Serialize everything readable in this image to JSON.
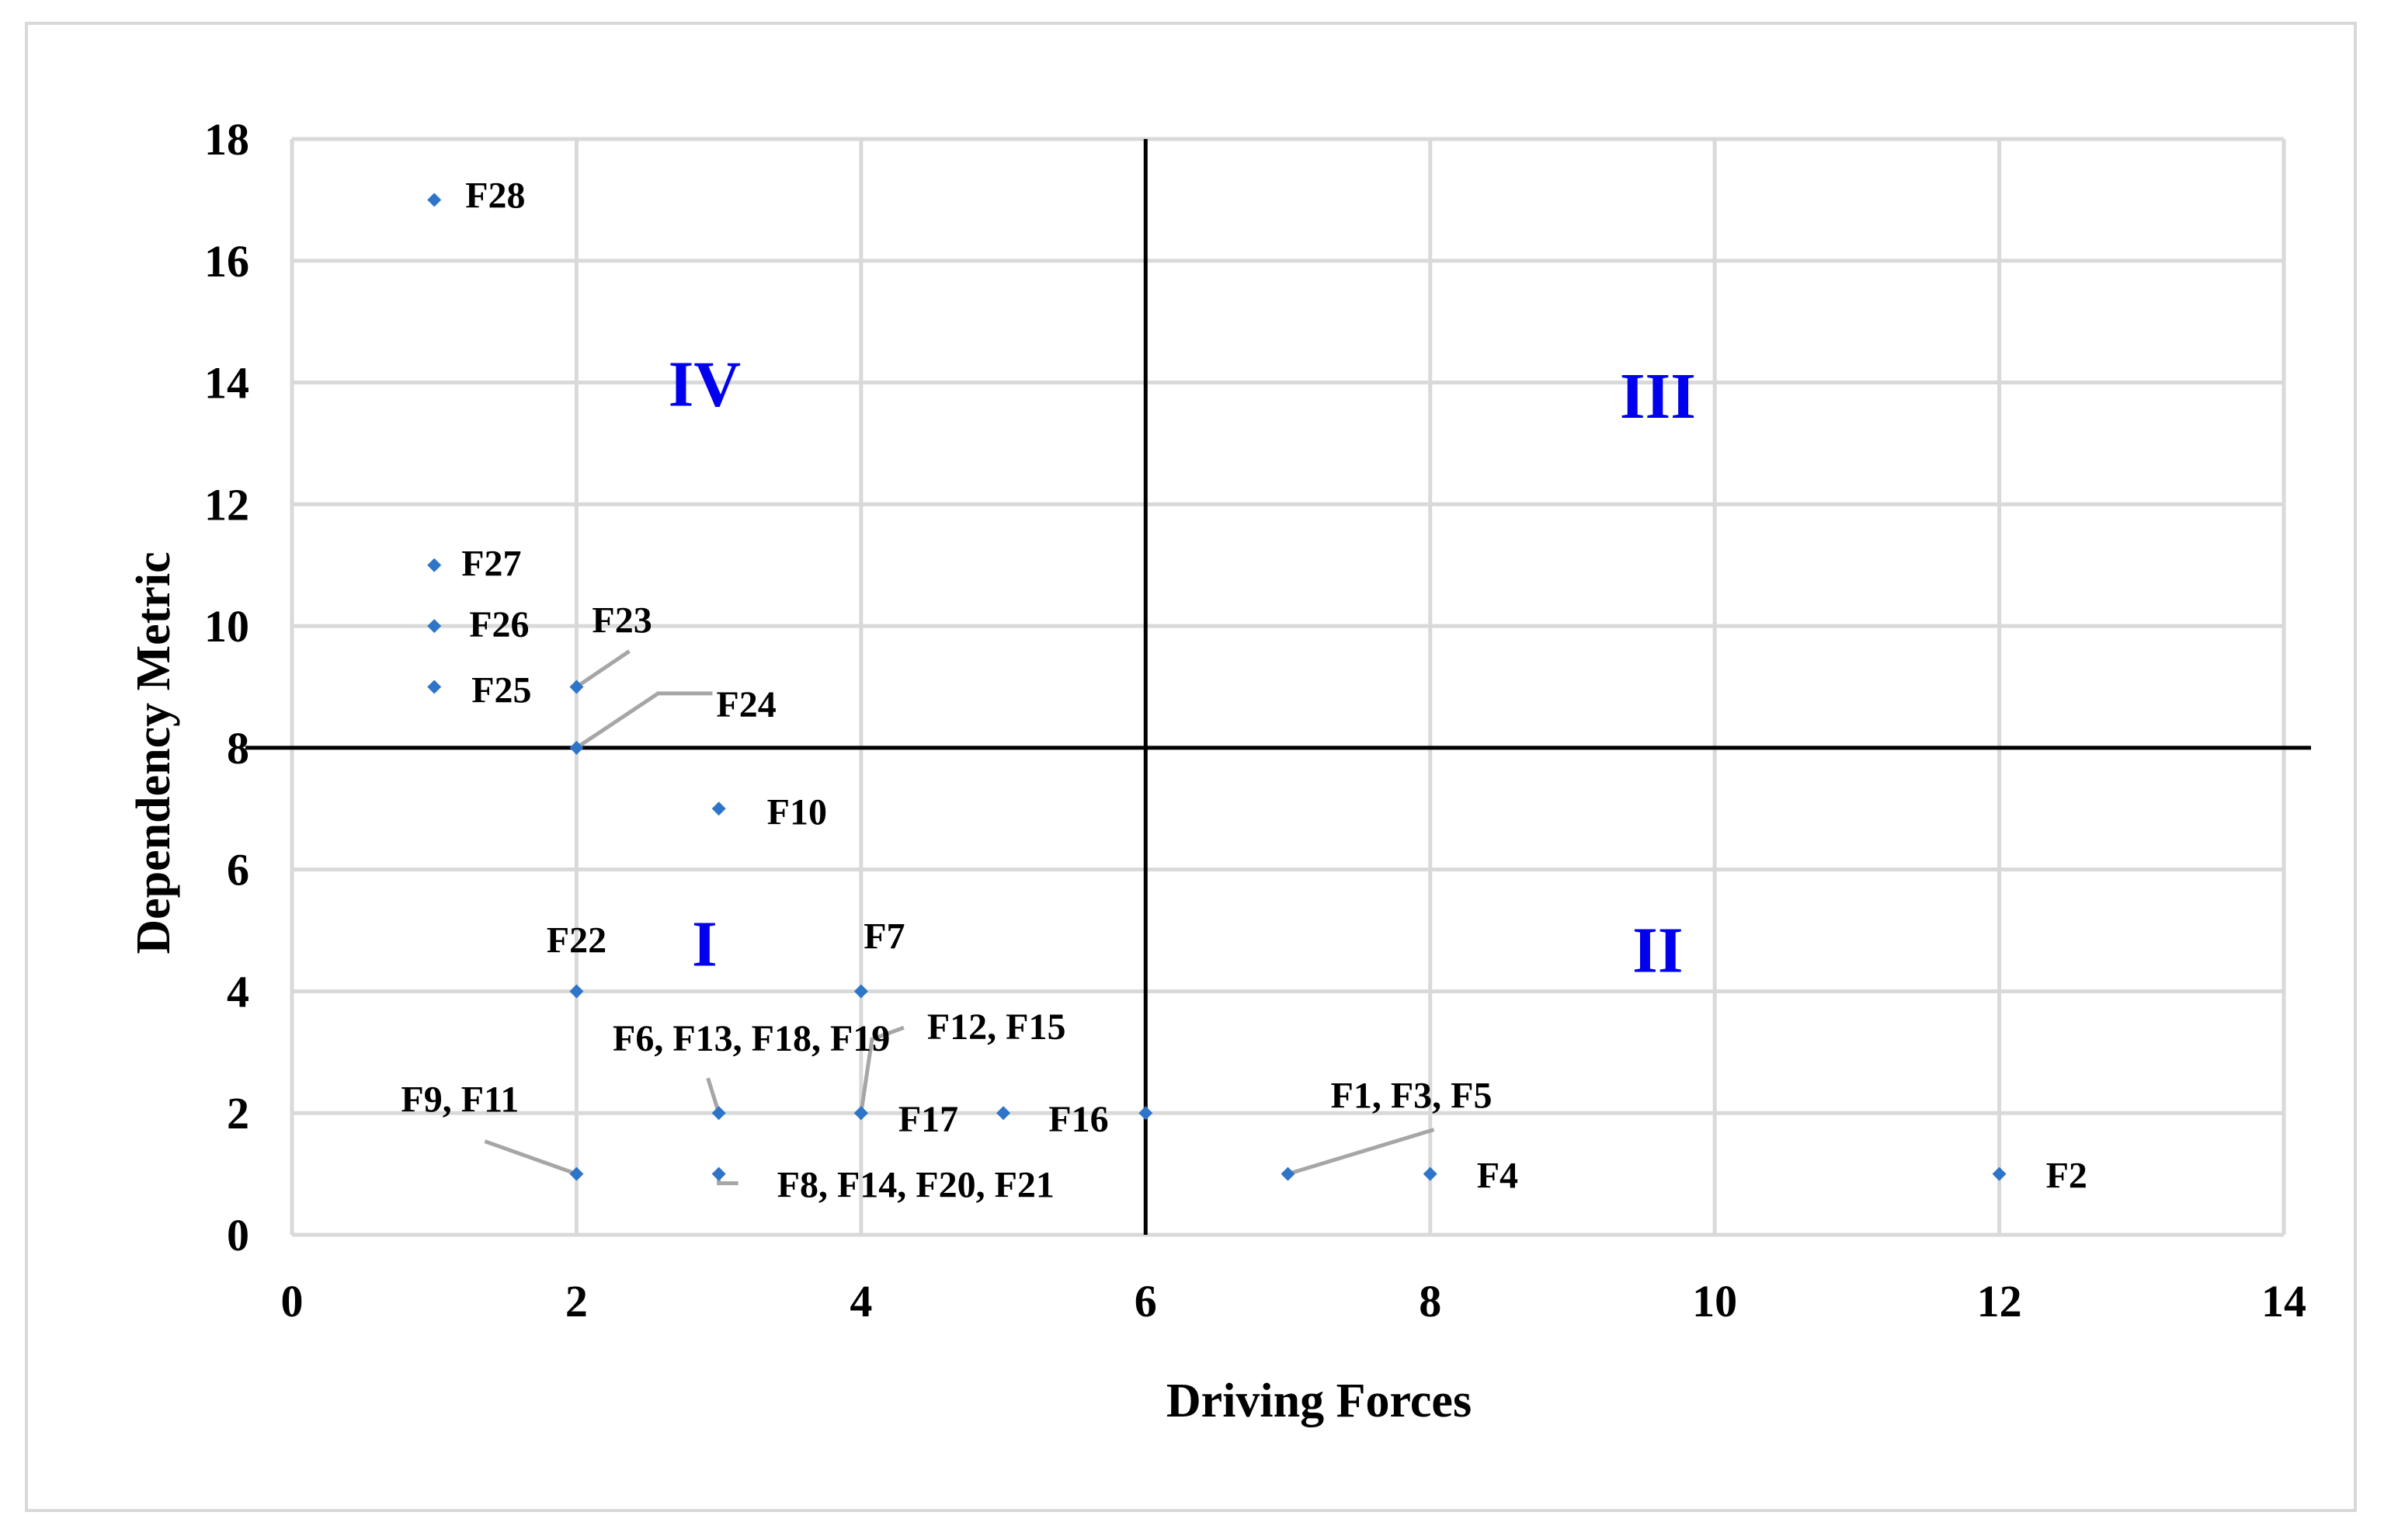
{
  "chart_data": {
    "type": "scatter",
    "title": "",
    "xlabel": "Driving Forces",
    "ylabel": "Dependency Metric",
    "xlim": [
      0,
      14
    ],
    "ylim": [
      0,
      18
    ],
    "x_ticks": [
      "0",
      "2",
      "4",
      "6",
      "8",
      "10",
      "12",
      "14"
    ],
    "y_ticks": [
      "0",
      "2",
      "4",
      "6",
      "8",
      "10",
      "12",
      "14",
      "16",
      "18"
    ],
    "grid": true,
    "legend": "none",
    "marker_color": "#2e75c9",
    "dividers": {
      "x": 6,
      "y": 8
    },
    "quadrants": [
      {
        "label": "IV",
        "x": 2.9,
        "y": 14
      },
      {
        "label": "III",
        "x": 9.6,
        "y": 13.8
      },
      {
        "label": "I",
        "x": 2.9,
        "y": 4.8
      },
      {
        "label": "II",
        "x": 9.6,
        "y": 4.7
      }
    ],
    "points": [
      {
        "label": "F28",
        "x": 1,
        "y": 17
      },
      {
        "label": "F27",
        "x": 1,
        "y": 11
      },
      {
        "label": "F26",
        "x": 1,
        "y": 10
      },
      {
        "label": "F25",
        "x": 1,
        "y": 9
      },
      {
        "label": "F23",
        "x": 2,
        "y": 9
      },
      {
        "label": "F24",
        "x": 2,
        "y": 8
      },
      {
        "label": "F10",
        "x": 3,
        "y": 7
      },
      {
        "label": "F22",
        "x": 2,
        "y": 4
      },
      {
        "label": "F7",
        "x": 4,
        "y": 4
      },
      {
        "label": "F12, F15",
        "x": 4,
        "y": 2
      },
      {
        "label": "F6, F13, F18, F19",
        "x": 3,
        "y": 2
      },
      {
        "label": "F9, F11",
        "x": 2,
        "y": 1
      },
      {
        "label": "F17",
        "x": 4,
        "y": 2
      },
      {
        "label": "F16",
        "x": 6,
        "y": 2
      },
      {
        "label": "F8, F14, F20, F21",
        "x": 3,
        "y": 1
      },
      {
        "label": "F1, F3, F5",
        "x": 7,
        "y": 1
      },
      {
        "label": "F4",
        "x": 8,
        "y": 1
      },
      {
        "label": "F2",
        "x": 12,
        "y": 1
      },
      {
        "label": "",
        "x": 5,
        "y": 2
      }
    ]
  }
}
